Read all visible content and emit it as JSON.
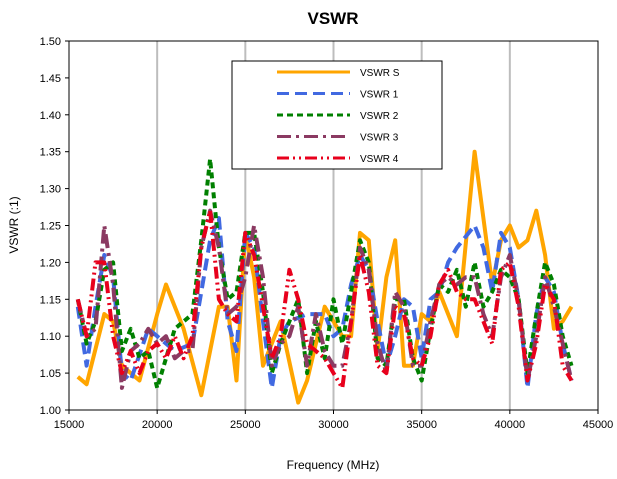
{
  "chart_data": {
    "type": "line",
    "title": "VSWR",
    "xlabel": "Frequency (MHz)",
    "ylabel": "VSWR (:1)",
    "xlim": [
      15000,
      45000
    ],
    "ylim": [
      1.0,
      1.5
    ],
    "x_ticks": [
      "15000",
      "20000",
      "25000",
      "30000",
      "35000",
      "40000",
      "45000"
    ],
    "y_ticks": [
      "1.00",
      "1.05",
      "1.10",
      "1.15",
      "1.20",
      "1.25",
      "1.30",
      "1.35",
      "1.40",
      "1.45",
      "1.50"
    ],
    "grid": "vertical",
    "legend_position": "top-center",
    "series": [
      {
        "name": "VSWR S",
        "color": "#FFA500",
        "dash": "solid",
        "x": [
          15500,
          16000,
          17000,
          17500,
          18000,
          19000,
          20000,
          20500,
          21500,
          22500,
          23500,
          24000,
          24500,
          25000,
          25500,
          26000,
          27000,
          28000,
          28500,
          29500,
          30500,
          31000,
          31500,
          32000,
          32500,
          33000,
          33500,
          34000,
          34500,
          35000,
          35500,
          36000,
          37000,
          38000,
          38500,
          39000,
          39500,
          40000,
          40500,
          41000,
          41500,
          42000,
          42500,
          43000,
          43500
        ],
        "y": [
          1.045,
          1.035,
          1.13,
          1.12,
          1.06,
          1.04,
          1.13,
          1.17,
          1.11,
          1.02,
          1.14,
          1.14,
          1.04,
          1.24,
          1.18,
          1.06,
          1.12,
          1.01,
          1.04,
          1.14,
          1.1,
          1.1,
          1.24,
          1.23,
          1.08,
          1.18,
          1.23,
          1.06,
          1.06,
          1.13,
          1.12,
          1.16,
          1.1,
          1.35,
          1.26,
          1.17,
          1.23,
          1.25,
          1.22,
          1.23,
          1.27,
          1.21,
          1.11,
          1.12,
          1.14
        ]
      },
      {
        "name": "VSWR 1",
        "color": "#4169E1",
        "dash": "long",
        "x": [
          15500,
          16000,
          16500,
          17000,
          17500,
          18000,
          18500,
          19500,
          20000,
          21000,
          22000,
          22500,
          23000,
          23500,
          24000,
          24500,
          25000,
          25500,
          26000,
          26500,
          27000,
          27500,
          28500,
          29500,
          30000,
          30500,
          31000,
          31500,
          32000,
          32500,
          33000,
          33500,
          34000,
          34500,
          35000,
          35500,
          36000,
          36500,
          37000,
          38000,
          38500,
          39000,
          39500,
          40000,
          40500,
          41000,
          41500,
          42000,
          42500,
          43000,
          43500
        ],
        "y": [
          1.14,
          1.06,
          1.14,
          1.21,
          1.18,
          1.05,
          1.04,
          1.11,
          1.1,
          1.08,
          1.09,
          1.16,
          1.23,
          1.26,
          1.12,
          1.08,
          1.24,
          1.22,
          1.12,
          1.03,
          1.1,
          1.12,
          1.13,
          1.13,
          1.1,
          1.11,
          1.17,
          1.21,
          1.19,
          1.12,
          1.06,
          1.1,
          1.15,
          1.14,
          1.07,
          1.15,
          1.16,
          1.2,
          1.22,
          1.25,
          1.22,
          1.16,
          1.24,
          1.22,
          1.15,
          1.03,
          1.13,
          1.18,
          1.16,
          1.09,
          1.04
        ]
      },
      {
        "name": "VSWR 2",
        "color": "#008000",
        "dash": "dashed",
        "x": [
          15500,
          16000,
          16500,
          17000,
          17500,
          18000,
          18500,
          19000,
          19500,
          20000,
          21000,
          22000,
          22500,
          23000,
          23500,
          24000,
          24500,
          25000,
          25500,
          26000,
          26500,
          27000,
          27500,
          28000,
          28500,
          29000,
          29500,
          30000,
          30500,
          31000,
          31500,
          32000,
          32500,
          33000,
          33500,
          34000,
          34500,
          35000,
          35500,
          36000,
          36500,
          37000,
          37500,
          38000,
          38500,
          39000,
          39500,
          40000,
          40500,
          41000,
          41500,
          42000,
          42500,
          43000,
          43500
        ],
        "y": [
          1.15,
          1.09,
          1.12,
          1.19,
          1.2,
          1.08,
          1.11,
          1.07,
          1.08,
          1.03,
          1.11,
          1.13,
          1.23,
          1.34,
          1.22,
          1.15,
          1.16,
          1.24,
          1.24,
          1.16,
          1.05,
          1.09,
          1.12,
          1.15,
          1.05,
          1.12,
          1.07,
          1.15,
          1.09,
          1.16,
          1.23,
          1.2,
          1.07,
          1.06,
          1.15,
          1.15,
          1.07,
          1.04,
          1.11,
          1.17,
          1.16,
          1.19,
          1.14,
          1.2,
          1.14,
          1.16,
          1.19,
          1.18,
          1.15,
          1.05,
          1.13,
          1.2,
          1.17,
          1.1,
          1.06
        ]
      },
      {
        "name": "VSWR 3",
        "color": "#8B3A62",
        "dash": "dashdot",
        "x": [
          15500,
          16000,
          16500,
          17000,
          17500,
          18000,
          18500,
          19000,
          19500,
          20000,
          20500,
          21000,
          21500,
          22000,
          22500,
          23000,
          23500,
          24000,
          24500,
          25000,
          25500,
          26000,
          26500,
          27000,
          27500,
          28000,
          28500,
          29000,
          29500,
          30000,
          30500,
          31000,
          31500,
          32000,
          32500,
          33000,
          33500,
          34000,
          34500,
          35000,
          35500,
          36000,
          36500,
          37000,
          37500,
          38000,
          38500,
          39000,
          39500,
          40000,
          40500,
          41000,
          41500,
          42000,
          42500,
          43000,
          43500
        ],
        "y": [
          1.15,
          1.1,
          1.11,
          1.25,
          1.17,
          1.03,
          1.08,
          1.09,
          1.11,
          1.09,
          1.1,
          1.07,
          1.08,
          1.08,
          1.22,
          1.27,
          1.22,
          1.13,
          1.14,
          1.18,
          1.25,
          1.18,
          1.06,
          1.09,
          1.1,
          1.14,
          1.06,
          1.13,
          1.08,
          1.06,
          1.06,
          1.12,
          1.22,
          1.19,
          1.09,
          1.05,
          1.16,
          1.14,
          1.06,
          1.06,
          1.12,
          1.17,
          1.18,
          1.17,
          1.18,
          1.18,
          1.13,
          1.1,
          1.18,
          1.21,
          1.15,
          1.04,
          1.1,
          1.18,
          1.14,
          1.09,
          1.04
        ]
      },
      {
        "name": "VSWR 4",
        "color": "#E8001C",
        "dash": "dashdotdot",
        "x": [
          15500,
          16000,
          16500,
          17000,
          17500,
          18000,
          18500,
          19000,
          19500,
          20000,
          20500,
          21000,
          21500,
          22000,
          22500,
          23000,
          23500,
          24000,
          24500,
          25000,
          25500,
          26000,
          26500,
          27000,
          27500,
          28000,
          28500,
          29000,
          29500,
          30000,
          30500,
          31000,
          31500,
          32000,
          32500,
          33000,
          33500,
          34000,
          34500,
          35000,
          35500,
          36000,
          36500,
          37000,
          37500,
          38000,
          38500,
          39000,
          39500,
          40000,
          40500,
          41000,
          41500,
          42000,
          42500,
          43000,
          43500
        ],
        "y": [
          1.15,
          1.1,
          1.2,
          1.2,
          1.1,
          1.05,
          1.08,
          1.05,
          1.08,
          1.09,
          1.07,
          1.1,
          1.07,
          1.1,
          1.22,
          1.27,
          1.15,
          1.13,
          1.12,
          1.24,
          1.21,
          1.14,
          1.07,
          1.1,
          1.19,
          1.15,
          1.09,
          1.08,
          1.07,
          1.05,
          1.03,
          1.12,
          1.21,
          1.16,
          1.06,
          1.05,
          1.14,
          1.13,
          1.07,
          1.06,
          1.1,
          1.17,
          1.19,
          1.16,
          1.15,
          1.15,
          1.12,
          1.09,
          1.19,
          1.2,
          1.14,
          1.04,
          1.09,
          1.17,
          1.15,
          1.06,
          1.04
        ]
      }
    ]
  }
}
